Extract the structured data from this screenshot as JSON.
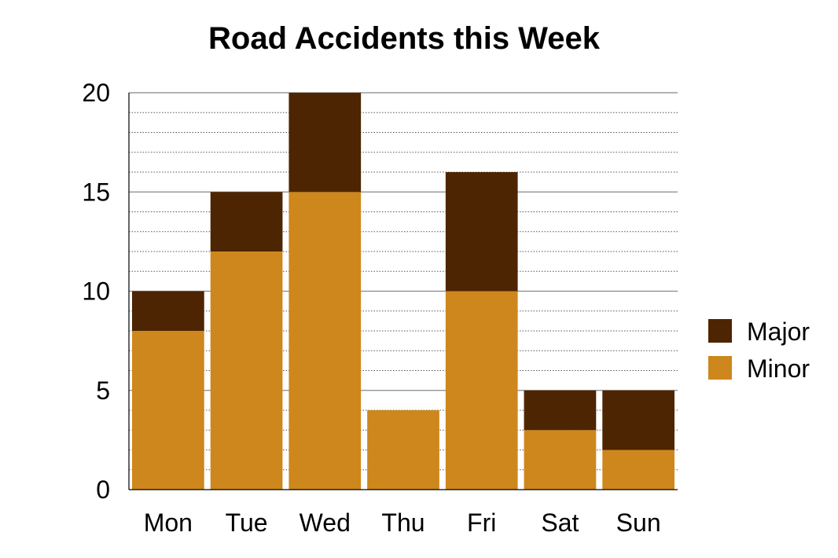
{
  "chart_data": {
    "type": "bar",
    "stacked": true,
    "title": "Road Accidents this Week",
    "xlabel": "",
    "ylabel": "",
    "categories": [
      "Mon",
      "Tue",
      "Wed",
      "Thu",
      "Fri",
      "Sat",
      "Sun"
    ],
    "series": [
      {
        "name": "Minor",
        "color": "#CE871C",
        "values": [
          8,
          12,
          15,
          4,
          10,
          3,
          2
        ]
      },
      {
        "name": "Major",
        "color": "#4D2502",
        "values": [
          2,
          3,
          5,
          0,
          6,
          2,
          3
        ]
      }
    ],
    "legend_order": [
      "Major",
      "Minor"
    ],
    "ylim": [
      0,
      20
    ],
    "yticks": [
      0,
      5,
      10,
      15,
      20
    ],
    "grid": {
      "major": true,
      "minor": true,
      "minor_step": 1
    },
    "legend_position": "right"
  }
}
